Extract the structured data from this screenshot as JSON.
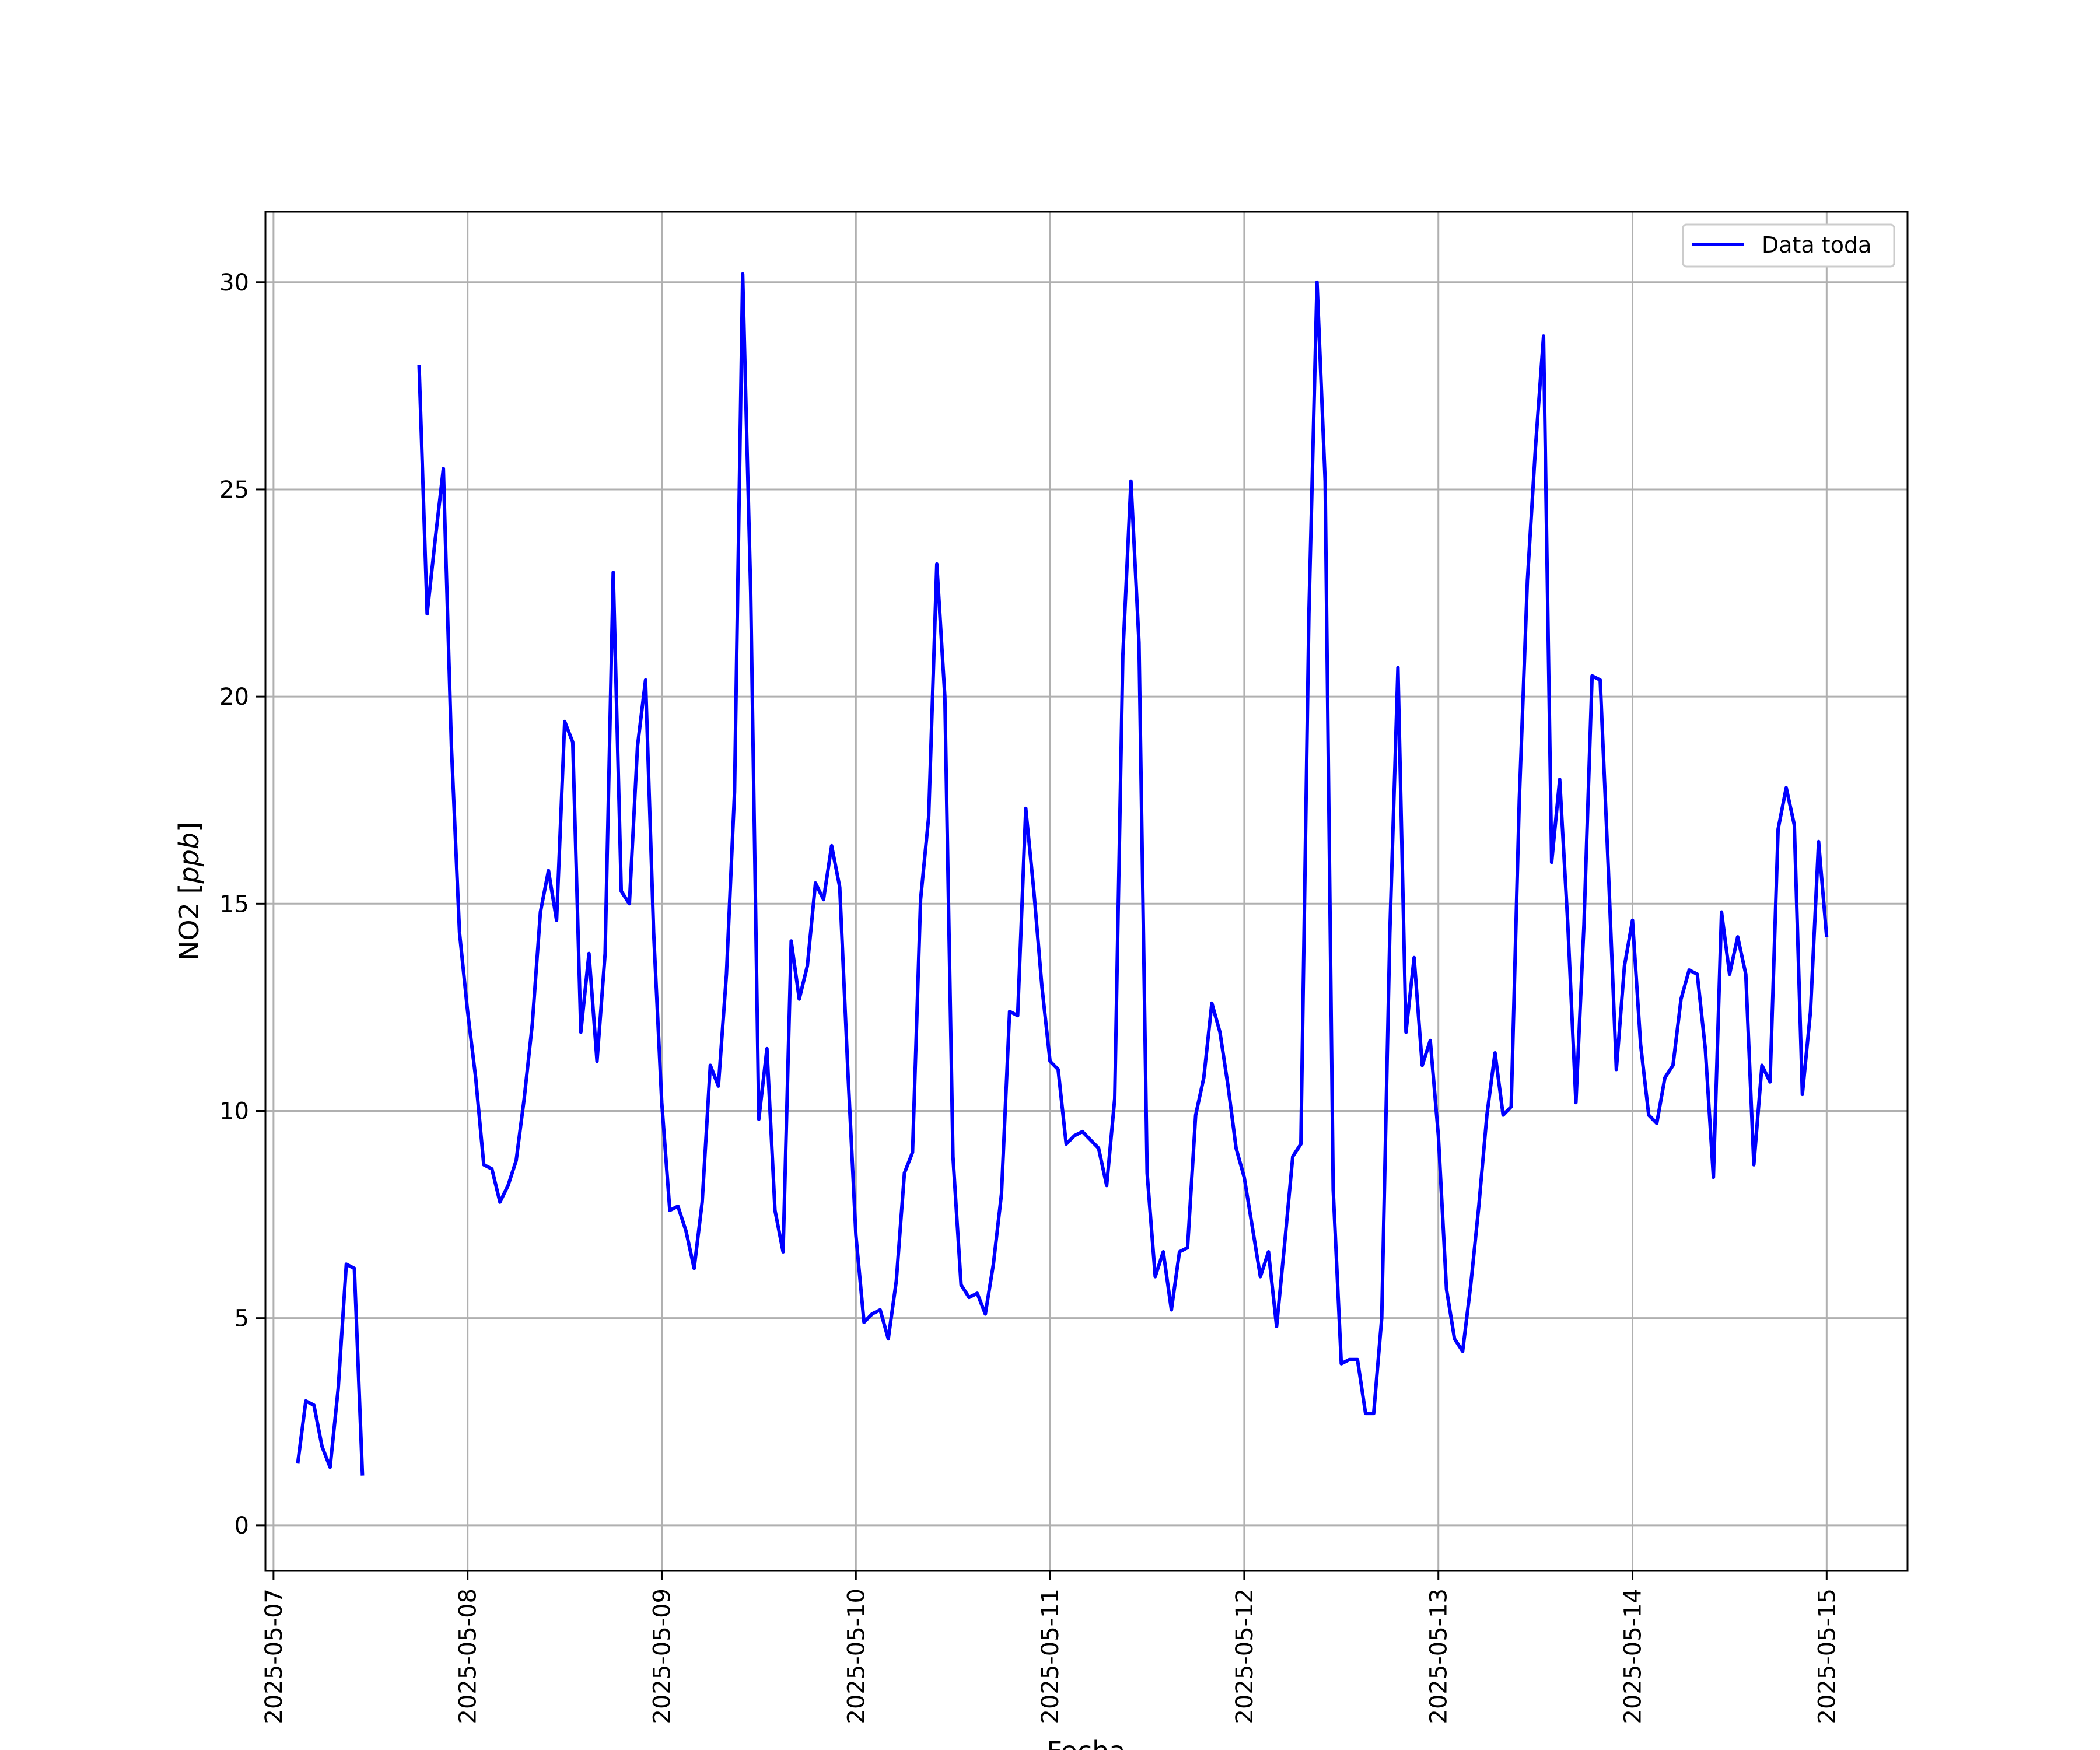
{
  "chart_data": {
    "type": "line",
    "xlabel": "Fecha",
    "ylabel": "NO2 [ppb]",
    "ylabel_parts": {
      "prefix": "NO2 [",
      "italic": "ppb",
      "suffix": "]"
    },
    "xlim": [
      "2025-05-06 23:00",
      "2025-05-15 10:00"
    ],
    "ylim": [
      -1.1,
      31.7
    ],
    "grid": true,
    "legend_position": "top-right",
    "xticks": [
      "2025-05-07",
      "2025-05-08",
      "2025-05-09",
      "2025-05-10",
      "2025-05-11",
      "2025-05-12",
      "2025-05-13",
      "2025-05-14",
      "2025-05-15"
    ],
    "yticks": [
      0,
      5,
      10,
      15,
      20,
      25,
      30
    ],
    "series": [
      {
        "name": "Data toda",
        "color": "#0000ff",
        "segments": [
          {
            "x": [
              "2025-05-07 03:00",
              "2025-05-07 04:00",
              "2025-05-07 05:00",
              "2025-05-07 06:00",
              "2025-05-07 07:00",
              "2025-05-07 08:00",
              "2025-05-07 09:00",
              "2025-05-07 10:00",
              "2025-05-07 11:00"
            ],
            "y": [
              1.5,
              3.0,
              2.9,
              1.9,
              1.4,
              3.3,
              6.3,
              6.2,
              1.2
            ]
          },
          {
            "x": [
              "2025-05-07 18:00",
              "2025-05-07 19:00",
              "2025-05-07 20:00",
              "2025-05-07 21:00",
              "2025-05-07 22:00",
              "2025-05-07 23:00",
              "2025-05-08 00:00",
              "2025-05-08 01:00",
              "2025-05-08 02:00",
              "2025-05-08 03:00",
              "2025-05-08 04:00",
              "2025-05-08 05:00",
              "2025-05-08 06:00",
              "2025-05-08 07:00",
              "2025-05-08 08:00",
              "2025-05-08 09:00",
              "2025-05-08 10:00",
              "2025-05-08 11:00",
              "2025-05-08 12:00",
              "2025-05-08 13:00",
              "2025-05-08 14:00",
              "2025-05-08 15:00",
              "2025-05-08 16:00",
              "2025-05-08 17:00",
              "2025-05-08 18:00",
              "2025-05-08 19:00",
              "2025-05-08 20:00",
              "2025-05-08 21:00",
              "2025-05-08 22:00",
              "2025-05-08 23:00",
              "2025-05-09 00:00",
              "2025-05-09 01:00",
              "2025-05-09 02:00",
              "2025-05-09 03:00",
              "2025-05-09 04:00",
              "2025-05-09 05:00",
              "2025-05-09 06:00",
              "2025-05-09 07:00",
              "2025-05-09 08:00",
              "2025-05-09 09:00",
              "2025-05-09 10:00",
              "2025-05-09 11:00",
              "2025-05-09 12:00",
              "2025-05-09 13:00",
              "2025-05-09 14:00",
              "2025-05-09 15:00",
              "2025-05-09 16:00",
              "2025-05-09 17:00",
              "2025-05-09 18:00",
              "2025-05-09 19:00",
              "2025-05-09 20:00",
              "2025-05-09 21:00",
              "2025-05-09 22:00",
              "2025-05-09 23:00",
              "2025-05-10 00:00",
              "2025-05-10 01:00",
              "2025-05-10 02:00",
              "2025-05-10 03:00",
              "2025-05-10 04:00",
              "2025-05-10 05:00",
              "2025-05-10 06:00",
              "2025-05-10 07:00",
              "2025-05-10 08:00",
              "2025-05-10 09:00",
              "2025-05-10 10:00",
              "2025-05-10 11:00",
              "2025-05-10 12:00",
              "2025-05-10 13:00",
              "2025-05-10 14:00",
              "2025-05-10 15:00",
              "2025-05-10 16:00",
              "2025-05-10 17:00",
              "2025-05-10 18:00",
              "2025-05-10 19:00",
              "2025-05-10 20:00",
              "2025-05-10 21:00",
              "2025-05-10 22:00",
              "2025-05-10 23:00",
              "2025-05-11 00:00",
              "2025-05-11 01:00",
              "2025-05-11 02:00",
              "2025-05-11 03:00",
              "2025-05-11 04:00",
              "2025-05-11 05:00",
              "2025-05-11 06:00",
              "2025-05-11 07:00",
              "2025-05-11 08:00",
              "2025-05-11 09:00",
              "2025-05-11 10:00",
              "2025-05-11 11:00",
              "2025-05-11 12:00",
              "2025-05-11 13:00",
              "2025-05-11 14:00",
              "2025-05-11 15:00",
              "2025-05-11 16:00",
              "2025-05-11 17:00",
              "2025-05-11 18:00",
              "2025-05-11 19:00",
              "2025-05-11 20:00",
              "2025-05-11 21:00",
              "2025-05-11 22:00",
              "2025-05-11 23:00",
              "2025-05-12 00:00",
              "2025-05-12 01:00",
              "2025-05-12 02:00",
              "2025-05-12 03:00",
              "2025-05-12 04:00",
              "2025-05-12 05:00",
              "2025-05-12 06:00",
              "2025-05-12 07:00",
              "2025-05-12 08:00",
              "2025-05-12 09:00",
              "2025-05-12 10:00",
              "2025-05-12 11:00",
              "2025-05-12 12:00",
              "2025-05-12 13:00",
              "2025-05-12 14:00",
              "2025-05-12 15:00",
              "2025-05-12 16:00",
              "2025-05-12 17:00",
              "2025-05-12 18:00",
              "2025-05-12 19:00",
              "2025-05-12 20:00",
              "2025-05-12 21:00",
              "2025-05-12 22:00",
              "2025-05-12 23:00",
              "2025-05-13 00:00",
              "2025-05-13 01:00",
              "2025-05-13 02:00",
              "2025-05-13 03:00",
              "2025-05-13 04:00",
              "2025-05-13 05:00",
              "2025-05-13 06:00",
              "2025-05-13 07:00",
              "2025-05-13 08:00",
              "2025-05-13 09:00",
              "2025-05-13 10:00",
              "2025-05-13 11:00",
              "2025-05-13 12:00",
              "2025-05-13 13:00",
              "2025-05-13 14:00",
              "2025-05-13 15:00",
              "2025-05-13 16:00",
              "2025-05-13 17:00",
              "2025-05-13 18:00",
              "2025-05-13 19:00",
              "2025-05-13 20:00",
              "2025-05-13 21:00",
              "2025-05-13 22:00",
              "2025-05-13 23:00",
              "2025-05-14 00:00",
              "2025-05-14 01:00",
              "2025-05-14 02:00",
              "2025-05-14 03:00",
              "2025-05-14 04:00",
              "2025-05-14 05:00",
              "2025-05-14 06:00",
              "2025-05-14 07:00",
              "2025-05-14 08:00",
              "2025-05-14 09:00",
              "2025-05-14 10:00",
              "2025-05-14 11:00",
              "2025-05-14 12:00",
              "2025-05-14 13:00",
              "2025-05-14 14:00",
              "2025-05-14 15:00",
              "2025-05-14 16:00",
              "2025-05-14 17:00",
              "2025-05-14 18:00",
              "2025-05-14 19:00",
              "2025-05-14 20:00",
              "2025-05-14 21:00",
              "2025-05-14 22:00",
              "2025-05-14 23:00",
              "2025-05-15 00:00"
            ],
            "y": [
              28.0,
              22.0,
              23.8,
              25.5,
              18.8,
              14.3,
              12.4,
              10.8,
              8.7,
              8.6,
              7.8,
              8.2,
              8.8,
              10.3,
              12.1,
              14.8,
              15.8,
              14.6,
              19.4,
              18.9,
              11.9,
              13.8,
              11.2,
              13.8,
              23.0,
              15.3,
              15.0,
              18.8,
              20.4,
              14.3,
              10.2,
              7.6,
              7.7,
              7.1,
              6.2,
              7.8,
              11.1,
              10.6,
              13.3,
              17.7,
              30.2,
              22.5,
              9.8,
              11.5,
              7.6,
              6.6,
              14.1,
              12.7,
              13.5,
              15.5,
              15.1,
              16.4,
              15.4,
              11.0,
              7.0,
              4.9,
              5.1,
              5.2,
              4.5,
              5.9,
              8.5,
              9.0,
              15.1,
              17.1,
              23.2,
              20.0,
              8.9,
              5.8,
              5.5,
              5.6,
              5.1,
              6.3,
              8.0,
              12.4,
              12.3,
              17.3,
              15.3,
              13.0,
              11.2,
              11.0,
              9.2,
              9.4,
              9.5,
              9.3,
              9.1,
              8.2,
              10.3,
              21.0,
              25.2,
              21.3,
              8.5,
              6.0,
              6.6,
              5.2,
              6.6,
              6.7,
              9.9,
              10.8,
              12.6,
              11.9,
              10.6,
              9.1,
              8.4,
              7.2,
              6.0,
              6.6,
              4.8,
              6.8,
              8.9,
              9.2,
              22.0,
              30.0,
              25.2,
              8.1,
              3.9,
              4.0,
              4.0,
              2.7,
              2.7,
              5.0,
              14.3,
              20.7,
              11.9,
              13.7,
              11.1,
              11.7,
              9.4,
              5.7,
              4.5,
              4.2,
              5.8,
              7.7,
              9.9,
              11.4,
              9.9,
              10.1,
              17.5,
              22.8,
              26.0,
              28.7,
              16.0,
              18.0,
              14.5,
              10.2,
              14.5,
              20.5,
              20.4,
              15.9,
              11.0,
              13.5,
              14.6,
              11.6,
              9.9,
              9.7,
              10.8,
              11.1,
              12.7,
              13.4,
              13.3,
              11.5,
              8.4,
              14.8,
              13.3,
              14.2,
              13.3,
              8.7,
              11.1,
              10.7,
              16.8,
              17.8,
              16.9,
              10.4,
              12.4,
              16.5,
              14.2
            ]
          }
        ]
      }
    ]
  }
}
